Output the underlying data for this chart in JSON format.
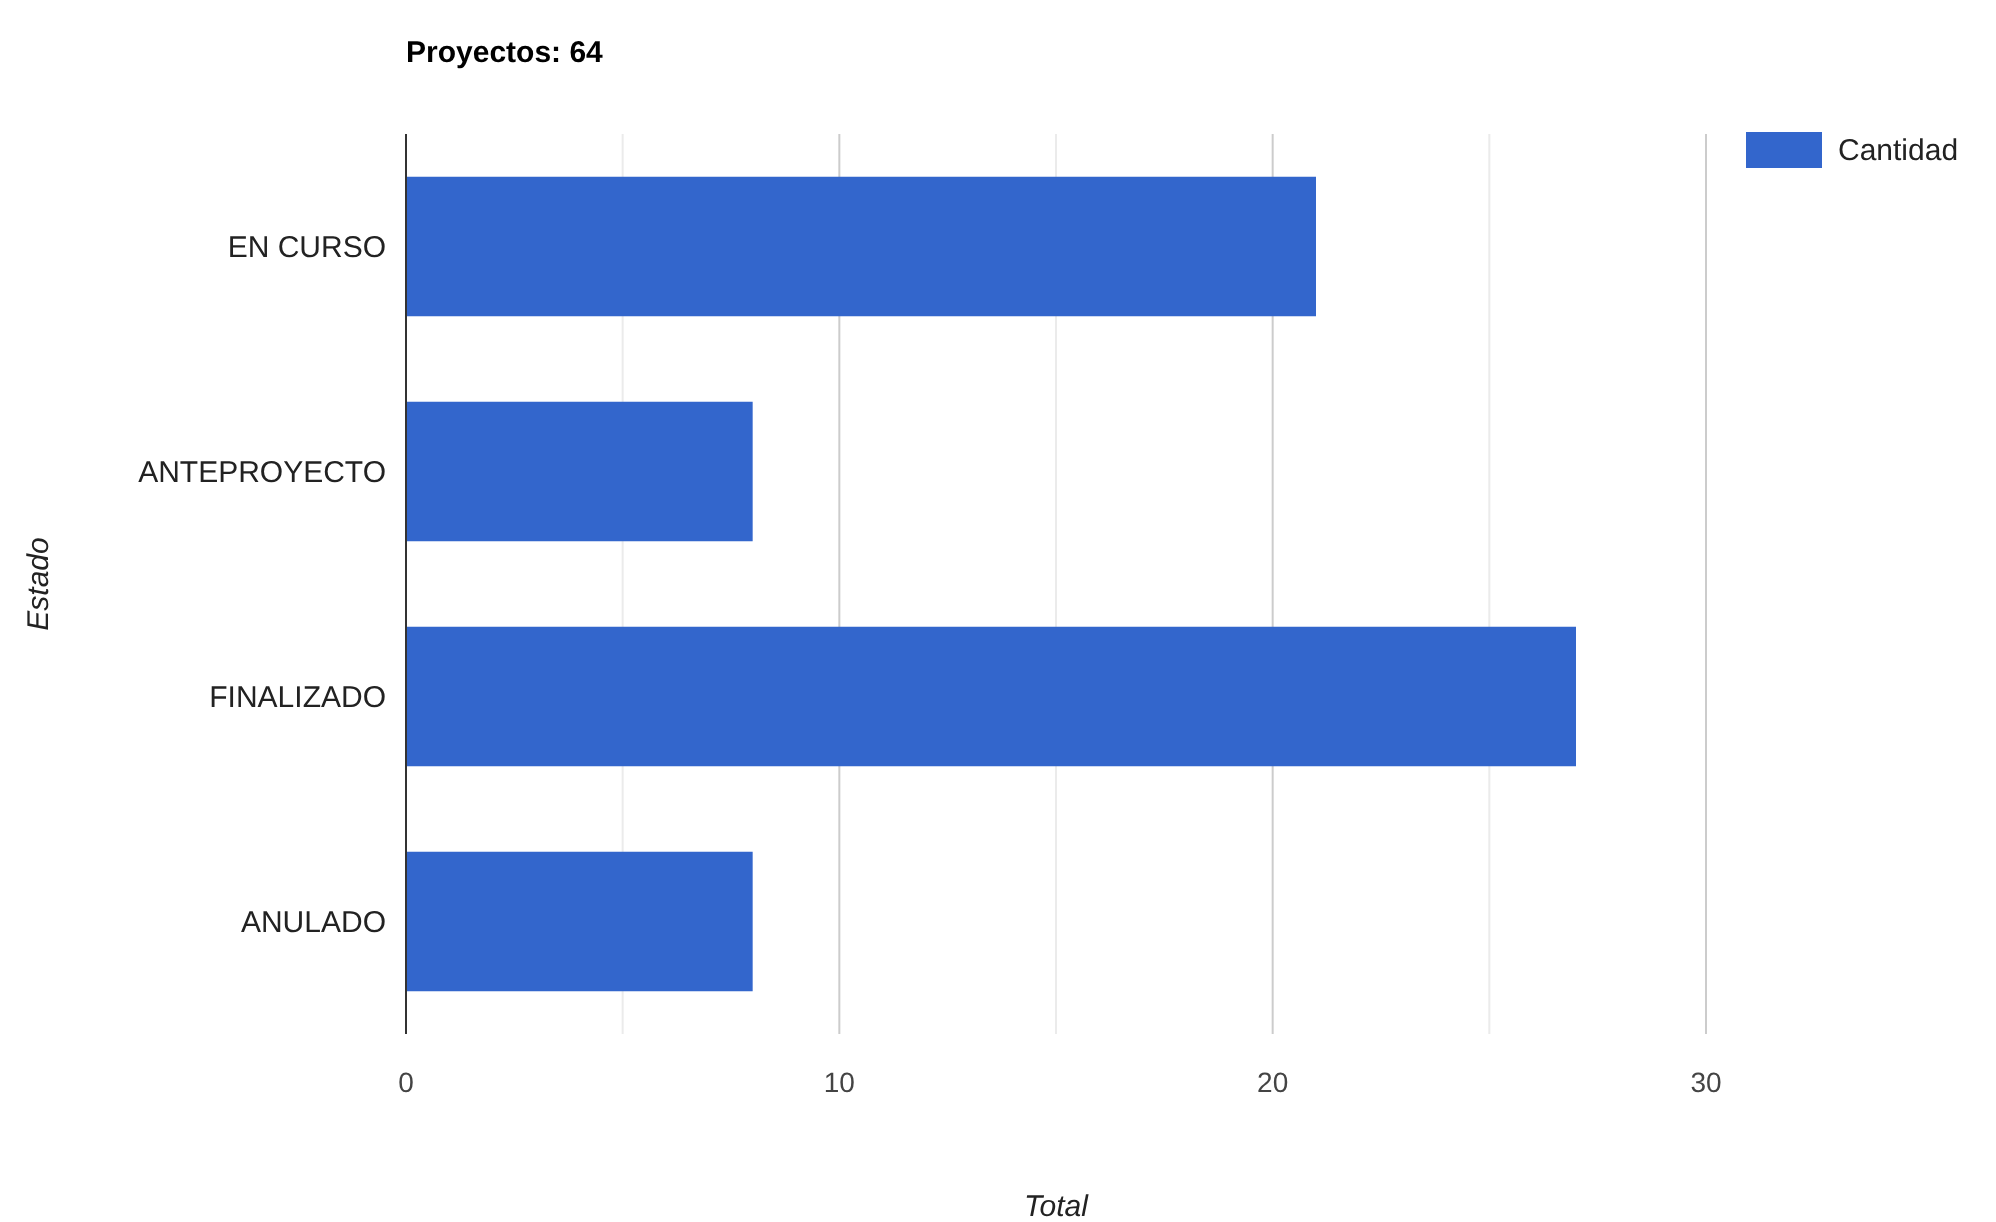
{
  "chart_data": {
    "type": "bar",
    "orientation": "horizontal",
    "title": "Proyectos: 64",
    "xlabel": "Total",
    "ylabel": "Estado",
    "categories": [
      "EN CURSO",
      "ANTEPROYECTO",
      "FINALIZADO",
      "ANULADO"
    ],
    "series": [
      {
        "name": "Cantidad",
        "color": "#3366cc",
        "values": [
          21,
          8,
          27,
          8
        ]
      }
    ],
    "xlim": [
      0,
      30
    ],
    "xticks": [
      0,
      {
        "value": 5,
        "label": null
      },
      10,
      {
        "value": 15,
        "label": null
      },
      20,
      {
        "value": 25,
        "label": null
      },
      30
    ],
    "grid": "x",
    "legend": "top right"
  }
}
